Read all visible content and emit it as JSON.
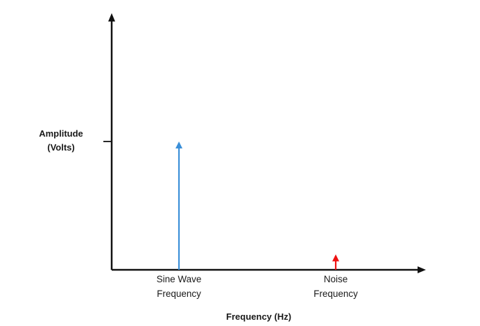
{
  "chart_data": {
    "type": "bar",
    "xlabel": "Frequency (Hz)",
    "ylabel_line1": "Amplitude",
    "ylabel_line2": "(Volts)",
    "categories": [
      "Sine Wave Frequency",
      "Noise Frequency"
    ],
    "category_label_lines": [
      [
        "Sine Wave",
        "Frequency"
      ],
      [
        "Noise",
        "Frequency"
      ]
    ],
    "values": [
      1.0,
      0.12
    ],
    "ylim": [
      0,
      1.0
    ],
    "tick_value": 1.0,
    "grid": false,
    "colors": {
      "axis": "#111111",
      "sine": "#3a8fd8",
      "noise": "#ee1111"
    }
  }
}
